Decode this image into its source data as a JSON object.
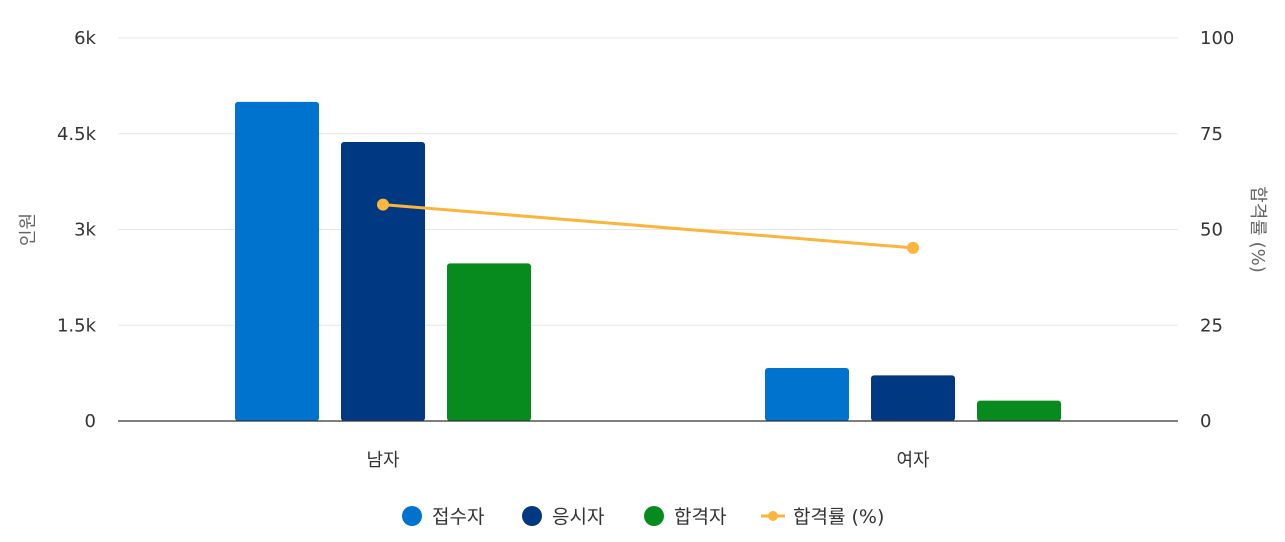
{
  "chart_data": {
    "type": "bar",
    "categories": [
      "남자",
      "여자"
    ],
    "y_left": {
      "label": "인원",
      "min": 0,
      "max": 6000,
      "ticks": [
        0,
        1500,
        3000,
        4500,
        6000
      ],
      "tick_labels": [
        "0",
        "1.5k",
        "3k",
        "4.5k",
        "6k"
      ]
    },
    "y_right": {
      "label": "합격률 (%)",
      "min": 0,
      "max": 100,
      "ticks": [
        0,
        25,
        50,
        75,
        100
      ],
      "tick_labels": [
        "0",
        "25",
        "50",
        "75",
        "100"
      ]
    },
    "series": [
      {
        "name": "접수자",
        "type": "bar",
        "axis": "left",
        "color": "#0073cf",
        "values": [
          5000,
          830
        ]
      },
      {
        "name": "응시자",
        "type": "bar",
        "axis": "left",
        "color": "#003882",
        "values": [
          4370,
          715
        ]
      },
      {
        "name": "합격자",
        "type": "bar",
        "axis": "left",
        "color": "#078a1e",
        "values": [
          2470,
          320
        ]
      },
      {
        "name": "합격률 (%)",
        "type": "line",
        "axis": "right",
        "color": "#fbb53c",
        "values": [
          56.5,
          45.2
        ]
      }
    ],
    "grid": true,
    "legend_position": "bottom"
  }
}
